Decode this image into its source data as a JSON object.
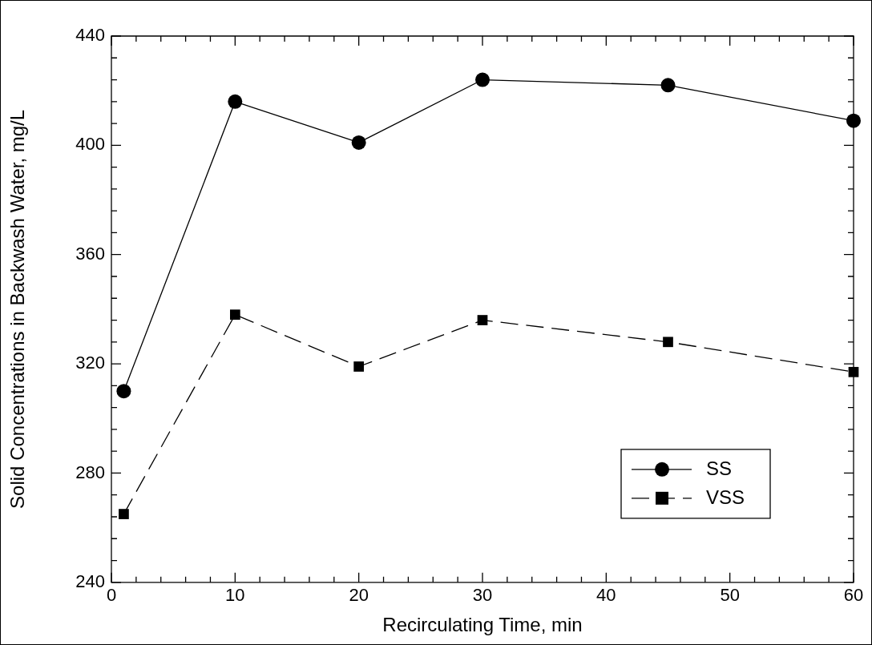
{
  "chart_data": {
    "type": "line",
    "xlabel": "Recirculating Time, min",
    "ylabel": "Solid Concentrations in Backwash Water, mg/L",
    "x": [
      1,
      10,
      20,
      30,
      45,
      60
    ],
    "series": [
      {
        "name": "SS",
        "color": "#000000",
        "marker": "circle",
        "line_style": "solid",
        "values": [
          310,
          416,
          401,
          424,
          422,
          409
        ]
      },
      {
        "name": "VSS",
        "color": "#000000",
        "marker": "square",
        "line_style": "dashed",
        "values": [
          265,
          338,
          319,
          336,
          328,
          317
        ]
      }
    ],
    "xlim": [
      0,
      60
    ],
    "ylim": [
      240,
      440
    ],
    "xticks": [
      0,
      {
        "value": 2,
        "label": null
      },
      {
        "value": 4,
        "label": null
      },
      {
        "value": 6,
        "label": null
      },
      {
        "value": 8,
        "label": null
      },
      10,
      {
        "value": 12,
        "label": null
      },
      {
        "value": 14,
        "label": null
      },
      {
        "value": 16,
        "label": null
      },
      {
        "value": 18,
        "label": null
      },
      20,
      {
        "value": 22,
        "label": null
      },
      {
        "value": 24,
        "label": null
      },
      {
        "value": 26,
        "label": null
      },
      {
        "value": 28,
        "label": null
      },
      30,
      {
        "value": 32,
        "label": null
      },
      {
        "value": 34,
        "label": null
      },
      {
        "value": 36,
        "label": null
      },
      {
        "value": 38,
        "label": null
      },
      40,
      {
        "value": 42,
        "label": null
      },
      {
        "value": 44,
        "label": null
      },
      {
        "value": 46,
        "label": null
      },
      {
        "value": 48,
        "label": null
      },
      50,
      {
        "value": 52,
        "label": null
      },
      {
        "value": 54,
        "label": null
      },
      {
        "value": 56,
        "label": null
      },
      {
        "value": 58,
        "label": null
      },
      60
    ],
    "yticks": [
      240,
      {
        "value": 248,
        "label": null
      },
      {
        "value": 256,
        "label": null
      },
      {
        "value": 264,
        "label": null
      },
      {
        "value": 272,
        "label": null
      },
      280,
      {
        "value": 288,
        "label": null
      },
      {
        "value": 296,
        "label": null
      },
      {
        "value": 304,
        "label": null
      },
      {
        "value": 312,
        "label": null
      },
      320,
      {
        "value": 328,
        "label": null
      },
      {
        "value": 336,
        "label": null
      },
      {
        "value": 344,
        "label": null
      },
      {
        "value": 352,
        "label": null
      },
      360,
      {
        "value": 368,
        "label": null
      },
      {
        "value": 376,
        "label": null
      },
      {
        "value": 384,
        "label": null
      },
      {
        "value": 392,
        "label": null
      },
      400,
      {
        "value": 408,
        "label": null
      },
      {
        "value": 416,
        "label": null
      },
      {
        "value": 424,
        "label": null
      },
      {
        "value": 432,
        "label": null
      },
      440
    ],
    "grid": false,
    "legend": "bottom right"
  }
}
